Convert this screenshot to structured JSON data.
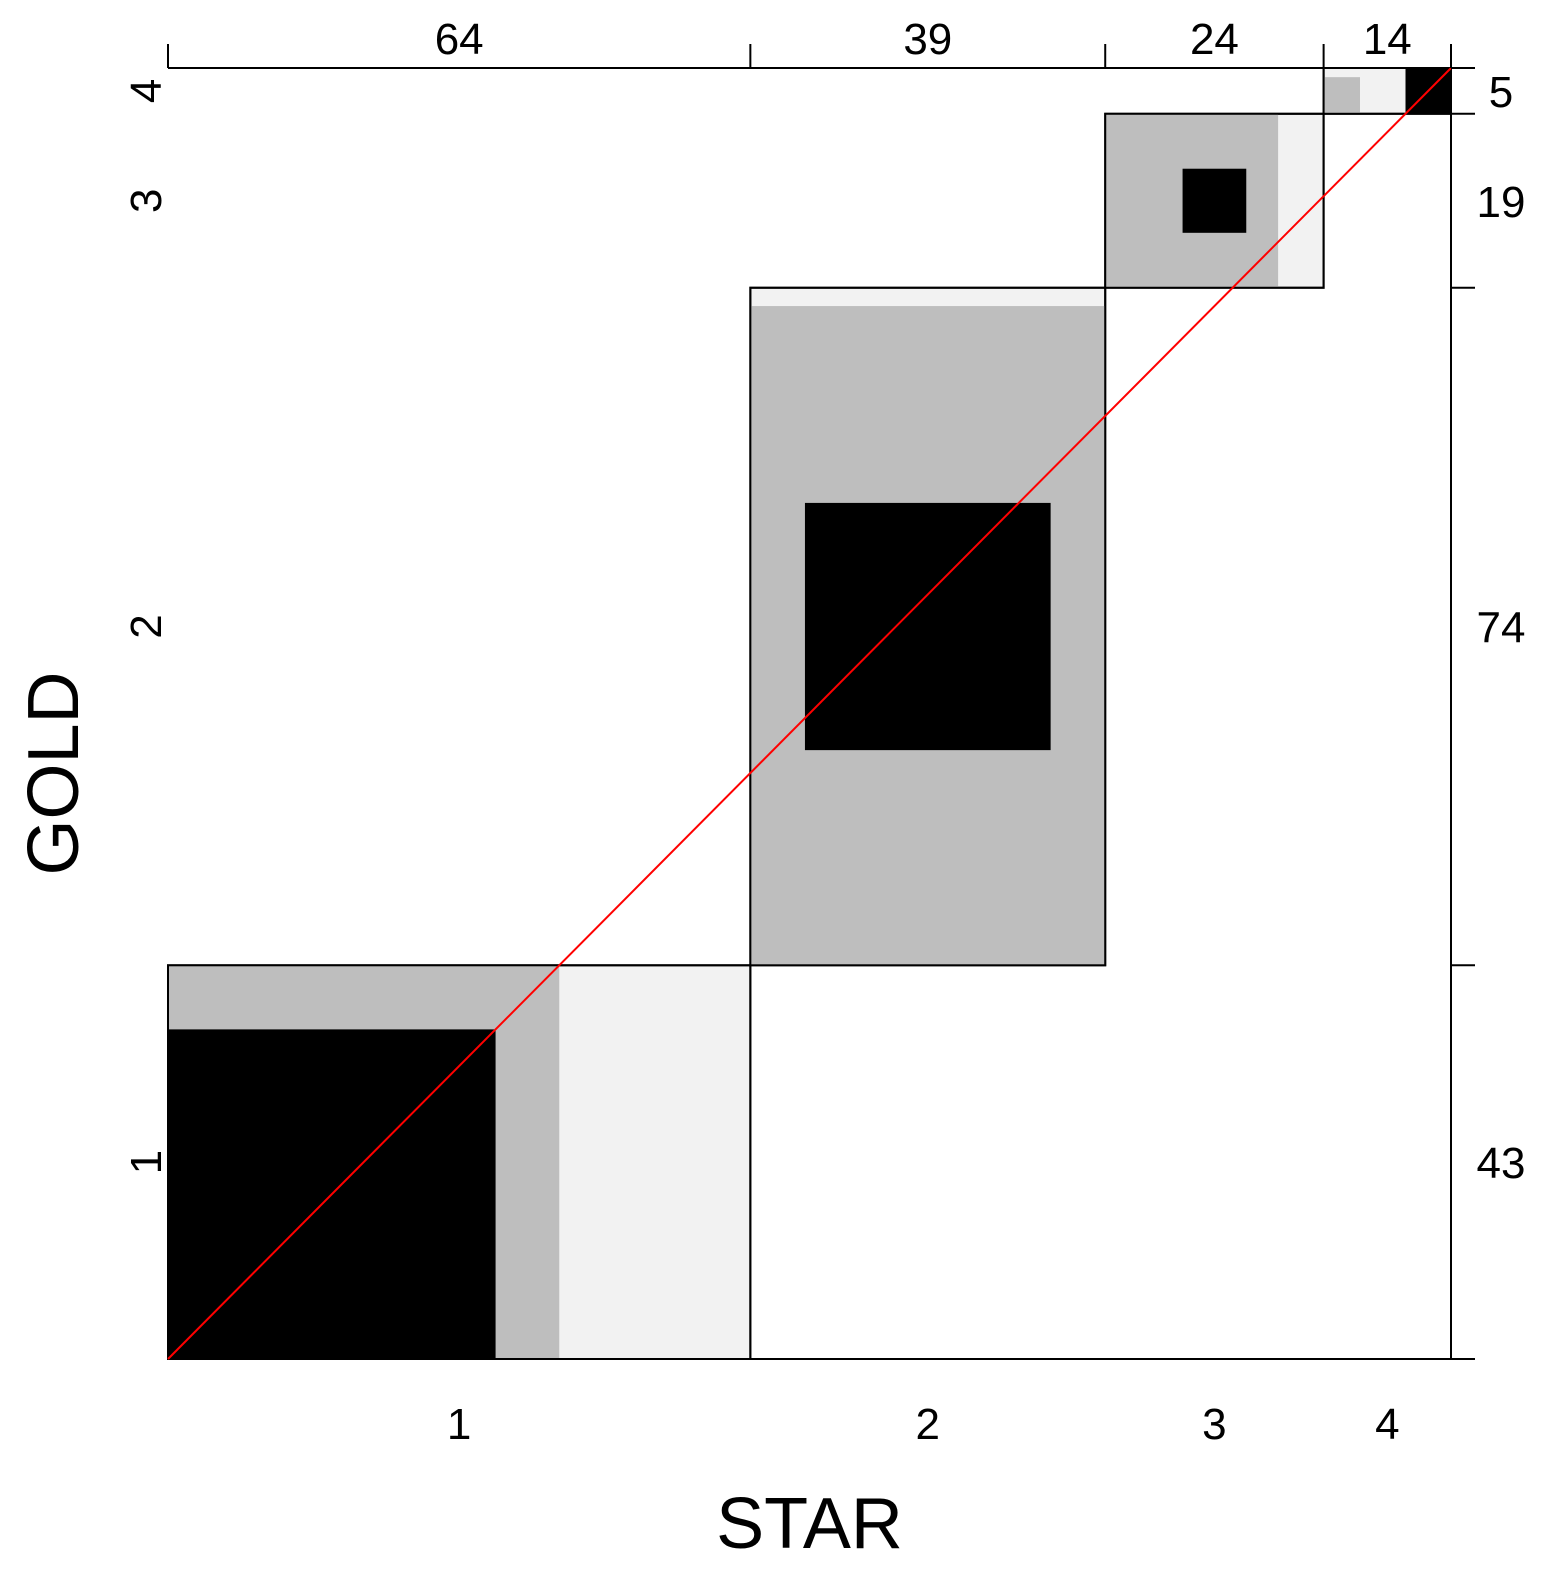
{
  "chart_data": {
    "type": "agreement",
    "xlabel": "STAR",
    "ylabel": "GOLD",
    "categories": [
      "1",
      "2",
      "3",
      "4"
    ],
    "column_totals": [
      64,
      39,
      24,
      14
    ],
    "row_totals": [
      43,
      74,
      19,
      5
    ],
    "diagonal_exact": [
      36,
      27,
      7,
      5
    ],
    "partial_agreement": [
      43,
      72,
      19,
      4
    ],
    "fill_colors": {
      "exact": "#000000",
      "partial": "#bebebe",
      "observed": "#f2f2f2",
      "diagonal_line": "#ff0000"
    }
  }
}
